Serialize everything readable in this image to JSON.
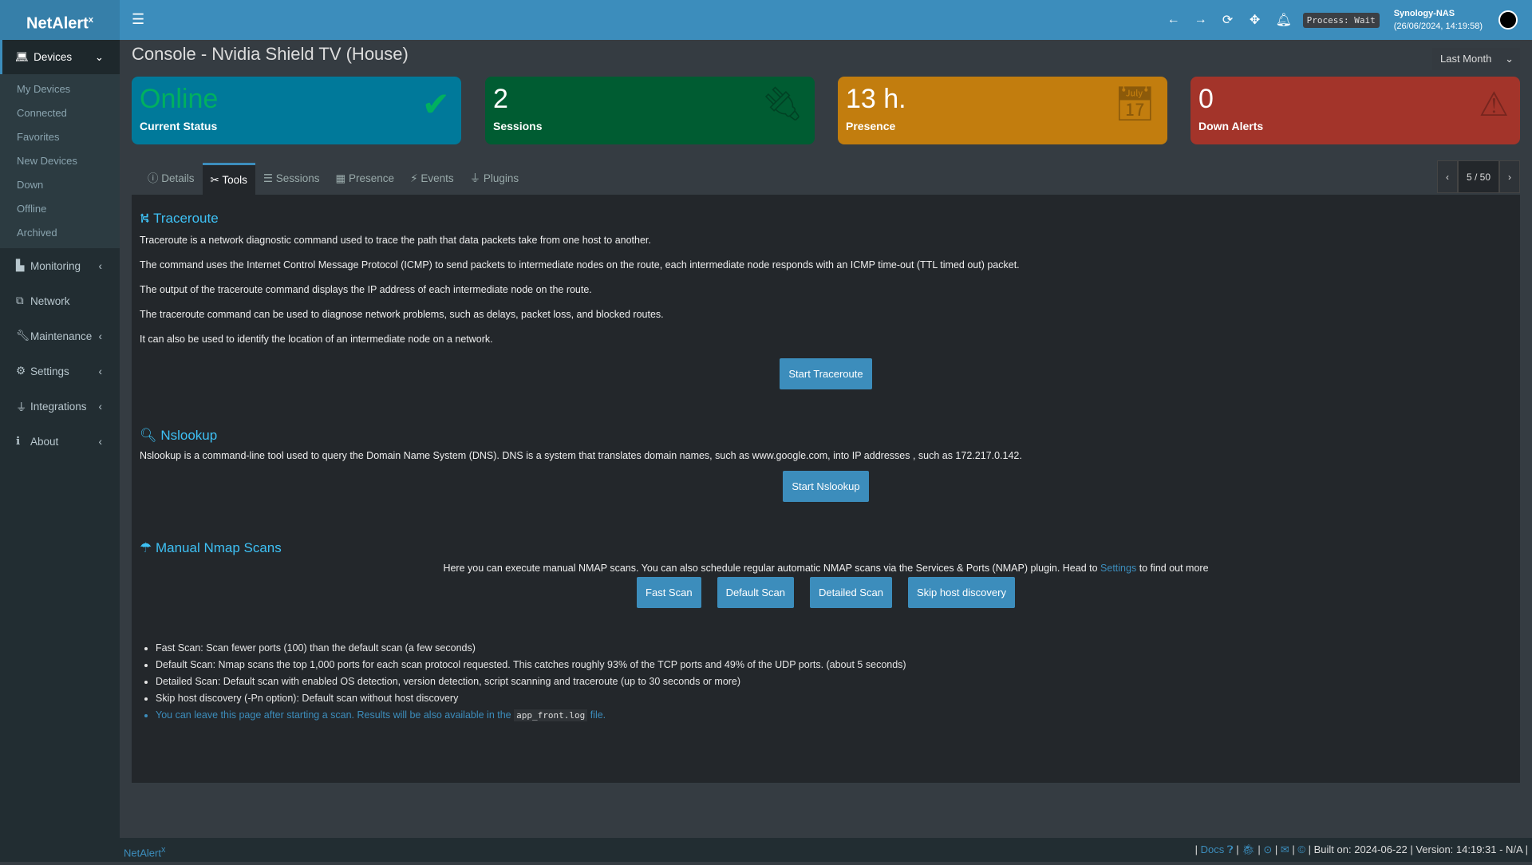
{
  "header": {
    "logo": "NetAlert",
    "logo_sup": "x",
    "process": "Process: Wait",
    "host": "Synology-NAS",
    "datetime": "(26/06/2024, 14:19:58)",
    "accent": "#3c8dbc"
  },
  "sidebar": {
    "active": "Devices",
    "sub": [
      "My Devices",
      "Connected",
      "Favorites",
      "New Devices",
      "Down",
      "Offline",
      "Archived"
    ],
    "items": [
      {
        "icon": "chart-icon",
        "label": "Monitoring"
      },
      {
        "icon": "network-icon",
        "label": "Network"
      },
      {
        "icon": "wrench-icon",
        "label": "Maintenance"
      },
      {
        "icon": "gear-icon",
        "label": "Settings"
      },
      {
        "icon": "plug-icon",
        "label": "Integrations"
      },
      {
        "icon": "info-icon",
        "label": "About"
      }
    ]
  },
  "page": {
    "title": "Console - Nvidia Shield TV (House)",
    "range": "Last Month"
  },
  "cards": [
    {
      "value": "Online",
      "label": "Current Status",
      "color": "#00799a"
    },
    {
      "value": "2",
      "label": "Sessions",
      "color": "#005c32"
    },
    {
      "value": "13 h.",
      "label": "Presence",
      "color": "#c27d0e"
    },
    {
      "value": "0",
      "label": "Down Alerts",
      "color": "#a3342a"
    }
  ],
  "tabs": [
    "Details",
    "Tools",
    "Sessions",
    "Presence",
    "Events",
    "Plugins"
  ],
  "pager": "5 / 50",
  "traceroute": {
    "title": "Traceroute",
    "paras": [
      "Traceroute is a network diagnostic command used to trace the path that data packets take from one host to another.",
      "The command uses the Internet Control Message Protocol (ICMP) to send packets to intermediate nodes on the route, each intermediate node responds with an ICMP time-out (TTL timed out) packet.",
      "The output of the traceroute command displays the IP address of each intermediate node on the route.",
      "The traceroute command can be used to diagnose network problems, such as delays, packet loss, and blocked routes.",
      "It can also be used to identify the location of an intermediate node on a network."
    ],
    "button": "Start Traceroute"
  },
  "nslookup": {
    "title": "Nslookup",
    "para": "Nslookup is a command-line tool used to query the Domain Name System (DNS). DNS is a system that translates domain names, such as www.google.com, into IP addresses , such as 172.217.0.142.",
    "button": "Start Nslookup"
  },
  "nmap": {
    "title": "Manual Nmap Scans",
    "intro": "Here you can execute manual NMAP scans. You can also schedule regular automatic NMAP scans via the Services & Ports (NMAP) plugin. Head to",
    "intro_link": "Settings",
    "intro_end": "to find out more",
    "buttons": [
      "Fast Scan",
      "Default Scan",
      "Detailed Scan",
      "Skip host discovery"
    ],
    "list": [
      "Fast Scan: Scan fewer ports (100) than the default scan (a few seconds)",
      "Default Scan: Nmap scans the top 1,000 ports for each scan protocol requested. This catches roughly 93% of the TCP ports and 49% of the UDP ports. (about 5 seconds)",
      "Detailed Scan: Default scan with enabled OS detection, version detection, script scanning and traceroute (up to 30 seconds or more)",
      "Skip host discovery (-Pn option): Default scan without host discovery"
    ],
    "note": "You can leave this page after starting a scan. Results will be also available in the",
    "note_code": "app_front.log",
    "note_end": "file."
  },
  "footer": {
    "brand": "NetAlert",
    "brand_sup": "x",
    "docs": "Docs",
    "built": "| Built on: 2024-06-22 | Version: 14:19:31 - N/A |"
  }
}
